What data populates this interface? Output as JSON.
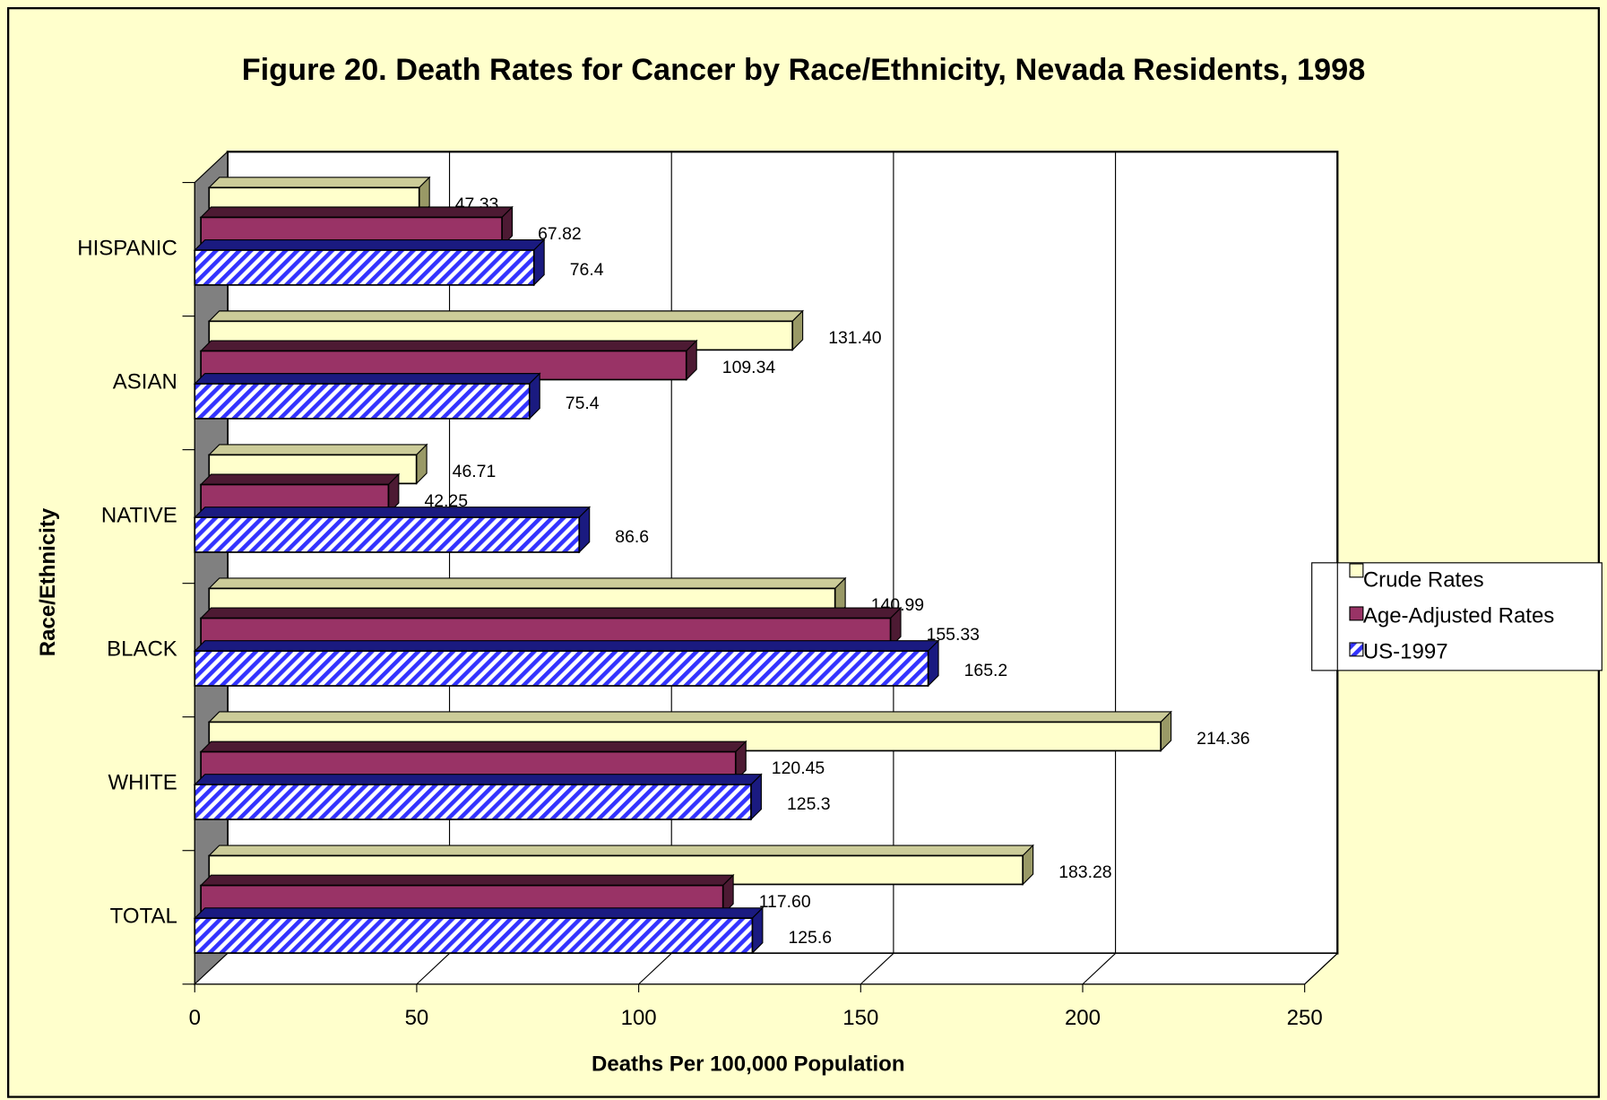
{
  "chart_data": {
    "type": "bar3d",
    "orientation": "horizontal",
    "title": "Figure 20. Death Rates for Cancer by Race/Ethnicity, Nevada Residents, 1998",
    "xlabel": "Deaths Per 100,000 Population",
    "ylabel": "Race/Ethnicity",
    "categories": [
      "HISPANIC",
      "ASIAN",
      "NATIVE",
      "BLACK",
      "WHITE",
      "TOTAL"
    ],
    "series": [
      {
        "name": "Crude Rates",
        "color": "#ffffcc",
        "values": [
          47.33,
          131.4,
          46.71,
          140.99,
          214.36,
          183.28
        ],
        "value_labels": [
          "47.33",
          "131.40",
          "46.71",
          "140.99",
          "214.36",
          "183.28"
        ]
      },
      {
        "name": "Age-Adjusted Rates",
        "color": "#993366",
        "values": [
          67.82,
          109.34,
          42.25,
          155.33,
          120.45,
          117.6
        ],
        "value_labels": [
          "67.82",
          "109.34",
          "42.25",
          "155.33",
          "120.45",
          "117.60"
        ]
      },
      {
        "name": "US-1997",
        "color": "#3333ff",
        "values": [
          76.4,
          75.4,
          86.6,
          165.2,
          125.3,
          125.6
        ]
      }
    ],
    "xlim": [
      0,
      250
    ],
    "xticks": [
      0,
      50,
      100,
      150,
      200,
      250
    ],
    "grid": true,
    "legend": "right"
  }
}
